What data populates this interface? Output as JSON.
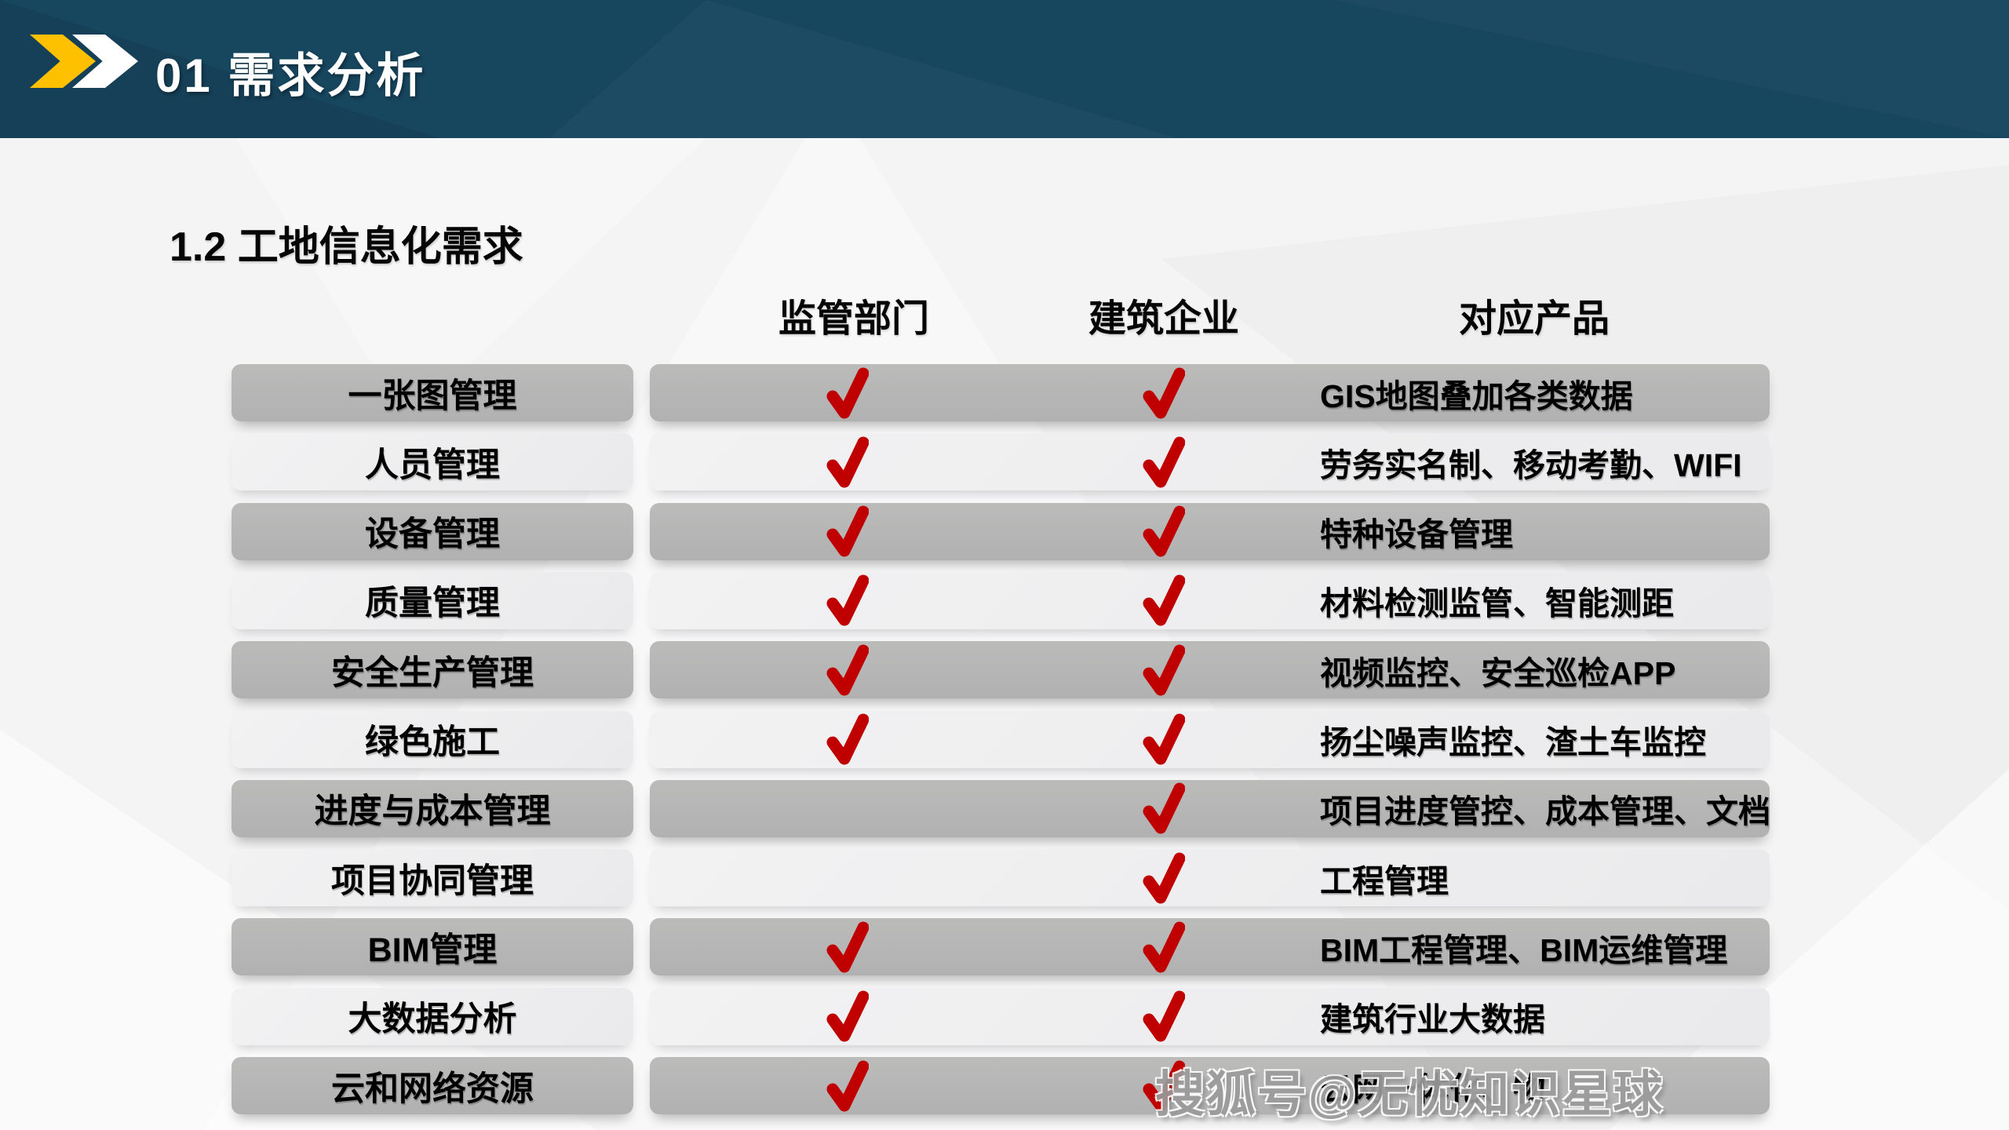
{
  "slide": {
    "header": {
      "title": "01 需求分析"
    },
    "section_title": "1.2 工地信息化需求",
    "table": {
      "columns": [
        {
          "label": "监管部门"
        },
        {
          "label": "建筑企业"
        },
        {
          "label": "对应产品"
        }
      ],
      "rows": [
        {
          "label": "一张图管理",
          "regulator": true,
          "enterprise": true,
          "product": "GIS地图叠加各类数据"
        },
        {
          "label": "人员管理",
          "regulator": true,
          "enterprise": true,
          "product": "劳务实名制、移动考勤、WIFI"
        },
        {
          "label": "设备管理",
          "regulator": true,
          "enterprise": true,
          "product": "特种设备管理"
        },
        {
          "label": "质量管理",
          "regulator": true,
          "enterprise": true,
          "product": "材料检测监管、智能测距"
        },
        {
          "label": "安全生产管理",
          "regulator": true,
          "enterprise": true,
          "product": "视频监控、安全巡检APP"
        },
        {
          "label": "绿色施工",
          "regulator": true,
          "enterprise": true,
          "product": "扬尘噪声监控、渣土车监控"
        },
        {
          "label": "进度与成本管理",
          "regulator": false,
          "enterprise": true,
          "product": "项目进度管控、成本管理、文档"
        },
        {
          "label": "项目协同管理",
          "regulator": false,
          "enterprise": true,
          "product": "工程管理"
        },
        {
          "label": "BIM管理",
          "regulator": true,
          "enterprise": true,
          "product": "BIM工程管理、BIM运维管理"
        },
        {
          "label": "大数据分析",
          "regulator": true,
          "enterprise": true,
          "product": "建筑行业大数据"
        },
        {
          "label": "云和网络资源",
          "regulator": true,
          "enterprise": true,
          "product": "云网一体化、物"
        }
      ]
    },
    "watermark": "搜狐号@无忧知识星球",
    "colors": {
      "header_bg": "#17465f",
      "accent_yellow": "#ffc000",
      "row_gray": "#b5b5b6",
      "row_light": "#efeff0",
      "check_red": "#c00000",
      "page_bg": "#f4f4f5",
      "watermark_gray": "#9b9b9b"
    }
  }
}
